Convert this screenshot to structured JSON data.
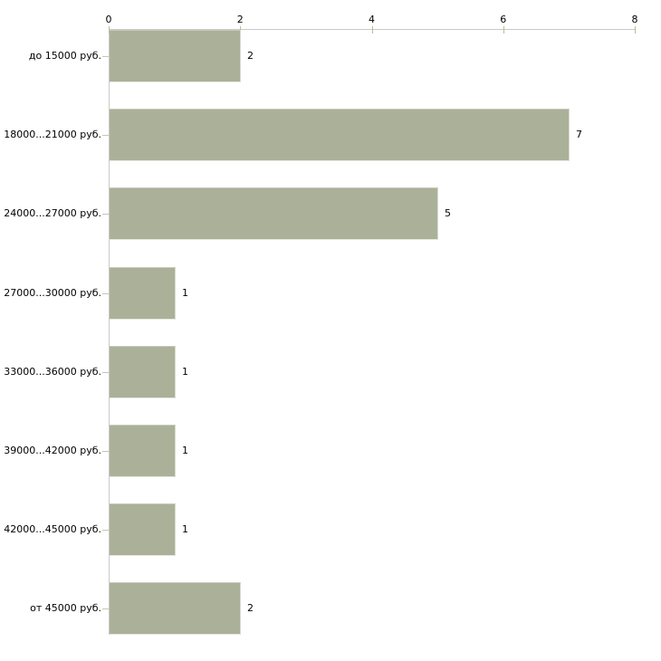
{
  "chart_data": {
    "type": "bar",
    "orientation": "horizontal",
    "title": "",
    "xlabel": "",
    "ylabel": "",
    "categories": [
      "до 15000 руб.",
      "18000...21000 руб.",
      "24000...27000 руб.",
      "27000...30000 руб.",
      "33000...36000 руб.",
      "39000...42000 руб.",
      "42000...45000 руб.",
      "от 45000 руб."
    ],
    "values": [
      2,
      7,
      5,
      1,
      1,
      1,
      1,
      2
    ],
    "value_labels": [
      "2",
      "7",
      "5",
      "1",
      "1",
      "1",
      "1",
      "2"
    ],
    "xlim": [
      0,
      8
    ],
    "x_ticks": [
      0,
      2,
      4,
      6,
      8
    ],
    "x_tick_labels": [
      "0",
      "2",
      "4",
      "6",
      "8"
    ],
    "axis_position": "top",
    "grid": false,
    "legend": false,
    "colors": {
      "background": "#ffffff",
      "bar_fill": "#abb198",
      "bar_edge_top": "#c7c9be",
      "bar_edge_right": "#d9dbd0",
      "bar_edge_bottom": "#e6e7df",
      "axis_line": "#c9c9c9",
      "tick_mark": "#b9bd92",
      "category_tick": "#c6c6aa",
      "text": "#000000"
    }
  }
}
